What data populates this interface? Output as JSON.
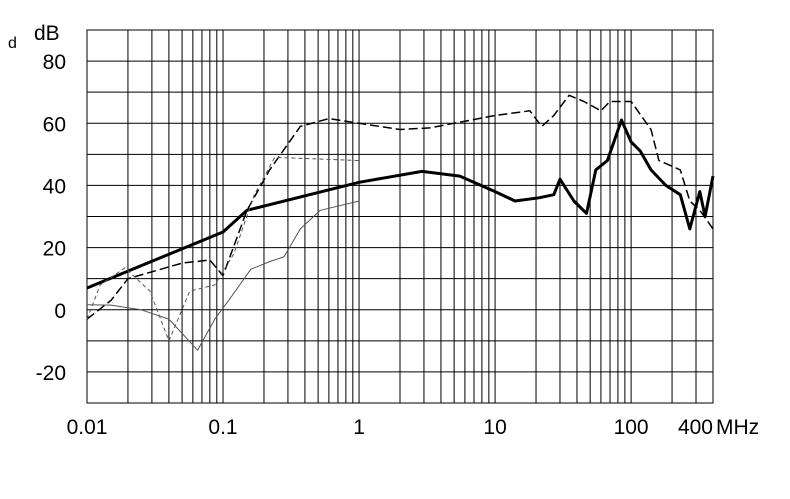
{
  "chart_data": {
    "type": "line",
    "corner_text": "d",
    "ylabel": "dB",
    "xlabel": "MHz",
    "xlog": true,
    "grid": true,
    "xlim": [
      0.01,
      400
    ],
    "xticks": [
      0.01,
      0.1,
      1,
      10,
      100,
      400
    ],
    "xminor": [
      0.02,
      0.03,
      0.04,
      0.05,
      0.06,
      0.07,
      0.08,
      0.09,
      0.2,
      0.3,
      0.4,
      0.5,
      0.6,
      0.7,
      0.8,
      0.9,
      2,
      3,
      4,
      5,
      6,
      7,
      8,
      9,
      20,
      30,
      40,
      50,
      60,
      70,
      80,
      90,
      200,
      300
    ],
    "ylim": [
      -30,
      90
    ],
    "yticks": [
      -20,
      0,
      20,
      40,
      60,
      80
    ],
    "yminor": [
      -30,
      -10,
      10,
      30,
      50,
      70,
      90
    ],
    "series": [
      {
        "color": "#000000",
        "width": 3,
        "dash": "none",
        "x": [
          0.01,
          0.1,
          0.15,
          1,
          2.9,
          5.5,
          10,
          14,
          21,
          27,
          30,
          38,
          47,
          55,
          67,
          85,
          100,
          117,
          140,
          180,
          230,
          270,
          320,
          350,
          400
        ],
        "values": [
          7,
          25,
          32,
          41,
          44.5,
          43,
          38,
          35,
          36,
          37,
          42,
          35,
          31,
          45,
          48,
          61,
          54,
          51,
          45,
          40,
          37,
          26,
          38,
          30,
          43
        ]
      },
      {
        "color": "#000000",
        "width": 1.5,
        "dash": "9,4",
        "x": [
          0.01,
          0.015,
          0.02,
          0.05,
          0.08,
          0.1,
          0.15,
          0.22,
          0.37,
          0.6,
          1,
          2,
          3.3,
          10,
          18,
          22,
          27,
          35,
          45,
          60,
          70,
          100,
          140,
          160,
          230,
          270,
          320,
          400
        ],
        "values": [
          -3,
          3,
          10,
          15,
          16,
          11,
          32,
          45,
          59,
          61.5,
          60,
          58,
          58.5,
          62.5,
          64,
          59,
          62.5,
          69,
          67,
          64,
          67,
          67,
          58,
          48,
          45,
          35,
          32,
          26
        ]
      },
      {
        "color": "#555555",
        "width": 1,
        "dash": "4,3",
        "x": [
          0.01,
          0.0125,
          0.019,
          0.029,
          0.04,
          0.057,
          0.087,
          0.12,
          0.17,
          0.24,
          1
        ],
        "values": [
          -3,
          8,
          13.5,
          6,
          -10,
          6,
          8,
          18,
          37,
          49,
          48
        ]
      },
      {
        "color": "#555555",
        "width": 1,
        "dash": "none",
        "x": [
          0.01,
          0.015,
          0.025,
          0.04,
          0.065,
          0.087,
          0.11,
          0.16,
          0.22,
          0.28,
          0.37,
          0.52,
          1
        ],
        "values": [
          1.6,
          1.5,
          0,
          -3,
          -13,
          -3,
          3,
          13,
          15.5,
          17,
          26,
          32,
          35
        ]
      }
    ]
  }
}
